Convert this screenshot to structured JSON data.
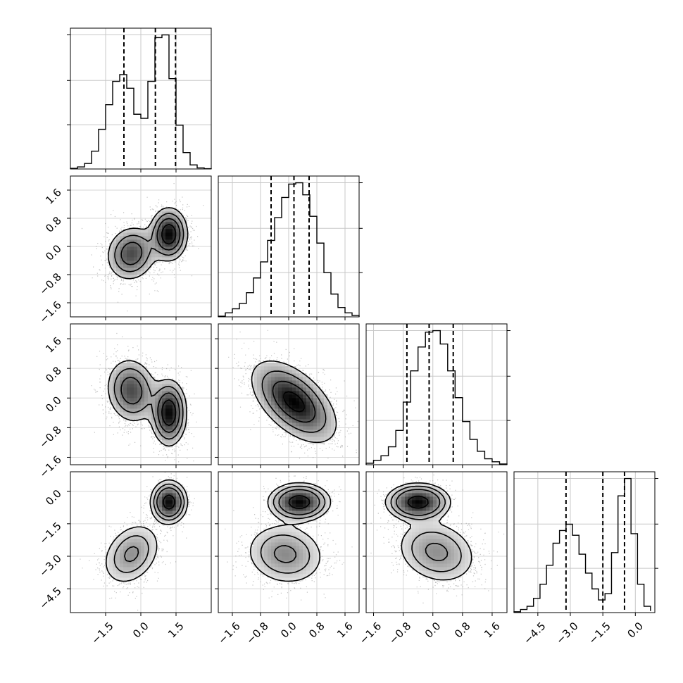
{
  "chart_data": {
    "type": "corner",
    "parameters": [
      {
        "range": [
          -3.0,
          3.0
        ],
        "ticks": [
          -1.5,
          0.0,
          1.5
        ],
        "tick_labels": [
          "−1.5",
          "0.0",
          "1.5"
        ],
        "quantiles": [
          -0.72,
          0.62,
          1.48
        ],
        "histogram": {
          "bin_edges": [
            -3.0,
            -2.7,
            -2.4,
            -2.1,
            -1.8,
            -1.5,
            -1.2,
            -0.9,
            -0.6,
            -0.3,
            0.0,
            0.3,
            0.6,
            0.9,
            1.2,
            1.5,
            1.8,
            2.1,
            2.4,
            2.7,
            3.0
          ],
          "counts": [
            0.005,
            0.015,
            0.04,
            0.13,
            0.29,
            0.47,
            0.64,
            0.69,
            0.59,
            0.4,
            0.37,
            0.64,
            0.96,
            0.98,
            0.66,
            0.32,
            0.12,
            0.03,
            0.008,
            0.002
          ]
        }
      },
      {
        "range": [
          -2.0,
          2.0
        ],
        "ticks": [
          -1.6,
          -0.8,
          0.0,
          0.8,
          1.6
        ],
        "tick_labels": [
          "−1.6",
          "−0.8",
          "0.0",
          "0.8",
          "1.6"
        ],
        "quantiles": [
          -0.5,
          0.15,
          0.58
        ],
        "histogram": {
          "bin_edges": [
            -2.0,
            -1.8,
            -1.6,
            -1.4,
            -1.2,
            -1.0,
            -0.8,
            -0.6,
            -0.4,
            -0.2,
            0.0,
            0.2,
            0.4,
            0.6,
            0.8,
            1.0,
            1.2,
            1.4,
            1.6,
            1.8,
            2.0
          ],
          "counts": [
            0.005,
            0.03,
            0.06,
            0.1,
            0.18,
            0.29,
            0.41,
            0.57,
            0.74,
            0.89,
            0.99,
            1.0,
            0.91,
            0.75,
            0.55,
            0.33,
            0.17,
            0.07,
            0.03,
            0.01
          ]
        }
      },
      {
        "range": [
          -1.8,
          2.0
        ],
        "ticks": [
          -1.6,
          -0.8,
          0.0,
          0.8,
          1.6
        ],
        "tick_labels": [
          "−1.6",
          "−0.8",
          "0.0",
          "0.8",
          "1.6"
        ],
        "quantiles": [
          -0.7,
          -0.1,
          0.55
        ],
        "histogram": {
          "bin_edges": [
            -1.8,
            -1.6,
            -1.4,
            -1.2,
            -1.0,
            -0.8,
            -0.6,
            -0.4,
            -0.2,
            0.0,
            0.2,
            0.4,
            0.6,
            0.8,
            1.0,
            1.2,
            1.4,
            1.6,
            1.8,
            2.0
          ],
          "counts": [
            0.01,
            0.03,
            0.06,
            0.12,
            0.23,
            0.42,
            0.63,
            0.79,
            0.89,
            0.9,
            0.81,
            0.63,
            0.45,
            0.29,
            0.17,
            0.09,
            0.04,
            0.02,
            0.005
          ]
        }
      },
      {
        "range": [
          -5.6,
          0.9
        ],
        "ticks": [
          -4.5,
          -3.0,
          -1.5,
          0.0
        ],
        "tick_labels": [
          "−4.5",
          "−3.0",
          "−1.5",
          "0.0"
        ],
        "quantiles": [
          -3.2,
          -1.5,
          -0.5
        ],
        "histogram": {
          "bin_edges": [
            -5.6,
            -5.3,
            -5.0,
            -4.7,
            -4.4,
            -4.1,
            -3.8,
            -3.5,
            -3.2,
            -2.9,
            -2.6,
            -2.3,
            -2.0,
            -1.7,
            -1.4,
            -1.1,
            -0.8,
            -0.5,
            -0.2,
            0.1,
            0.4,
            0.7
          ],
          "counts": [
            0.005,
            0.02,
            0.04,
            0.09,
            0.18,
            0.3,
            0.44,
            0.52,
            0.56,
            0.49,
            0.37,
            0.25,
            0.15,
            0.08,
            0.12,
            0.38,
            0.74,
            0.85,
            0.5,
            0.18,
            0.04,
            0.01
          ]
        }
      }
    ],
    "pairs": [
      {
        "row": 1,
        "col": 0,
        "modes": [
          {
            "center": [
              -0.4,
              -0.2
            ],
            "sigma": [
              0.55,
              0.4
            ],
            "rho": 0.1,
            "weight": 0.5
          },
          {
            "center": [
              1.2,
              0.35
            ],
            "sigma": [
              0.4,
              0.38
            ],
            "rho": 0.0,
            "weight": 0.5
          }
        ]
      },
      {
        "row": 2,
        "col": 0,
        "modes": [
          {
            "center": [
              -0.4,
              0.2
            ],
            "sigma": [
              0.55,
              0.45
            ],
            "rho": -0.1,
            "weight": 0.5
          },
          {
            "center": [
              1.2,
              -0.4
            ],
            "sigma": [
              0.38,
              0.45
            ],
            "rho": 0.0,
            "weight": 0.5
          }
        ]
      },
      {
        "row": 2,
        "col": 1,
        "modes": [
          {
            "center": [
              0.15,
              -0.1
            ],
            "sigma": [
              0.6,
              0.55
            ],
            "rho": -0.55,
            "weight": 1.0
          }
        ]
      },
      {
        "row": 3,
        "col": 0,
        "modes": [
          {
            "center": [
              -0.4,
              -2.9
            ],
            "sigma": [
              0.6,
              0.7
            ],
            "rho": 0.3,
            "weight": 0.5
          },
          {
            "center": [
              1.2,
              -0.5
            ],
            "sigma": [
              0.35,
              0.45
            ],
            "rho": 0.0,
            "weight": 0.5
          }
        ]
      },
      {
        "row": 3,
        "col": 1,
        "modes": [
          {
            "center": [
              0.3,
              -0.5
            ],
            "sigma": [
              0.4,
              0.4
            ],
            "rho": 0.0,
            "weight": 0.5
          },
          {
            "center": [
              -0.1,
              -2.9
            ],
            "sigma": [
              0.55,
              0.7
            ],
            "rho": -0.1,
            "weight": 0.5
          }
        ]
      },
      {
        "row": 3,
        "col": 2,
        "modes": [
          {
            "center": [
              -0.4,
              -0.5
            ],
            "sigma": [
              0.4,
              0.4
            ],
            "rho": 0.0,
            "weight": 0.5
          },
          {
            "center": [
              0.1,
              -2.8
            ],
            "sigma": [
              0.55,
              0.75
            ],
            "rho": -0.2,
            "weight": 0.5
          }
        ]
      }
    ],
    "grid": true,
    "histogram_style": "step",
    "quantile_style": "dashed",
    "contour_levels_sigma": [
      0.5,
      1.0,
      1.5,
      2.0
    ]
  }
}
